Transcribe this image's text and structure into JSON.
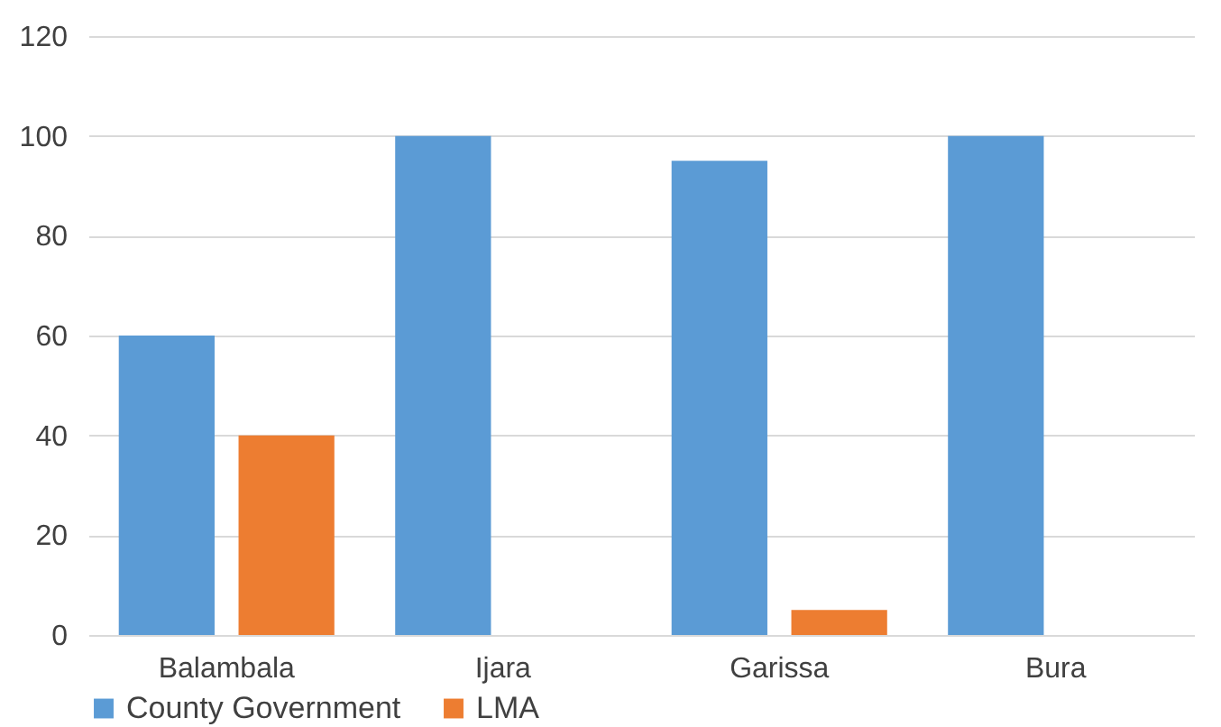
{
  "chart_data": {
    "type": "bar",
    "categories": [
      "Balambala",
      "Ijara",
      "Garissa",
      "Bura"
    ],
    "series": [
      {
        "name": "County Government",
        "color": "#5b9bd5",
        "values": [
          60,
          100,
          95,
          100
        ]
      },
      {
        "name": "LMA",
        "color": "#ed7d31",
        "values": [
          40,
          0,
          5,
          0
        ]
      }
    ],
    "ylim": [
      0,
      120
    ],
    "yticks": [
      0,
      20,
      40,
      60,
      80,
      100,
      120
    ],
    "grid": "y",
    "legend": "bottom"
  }
}
